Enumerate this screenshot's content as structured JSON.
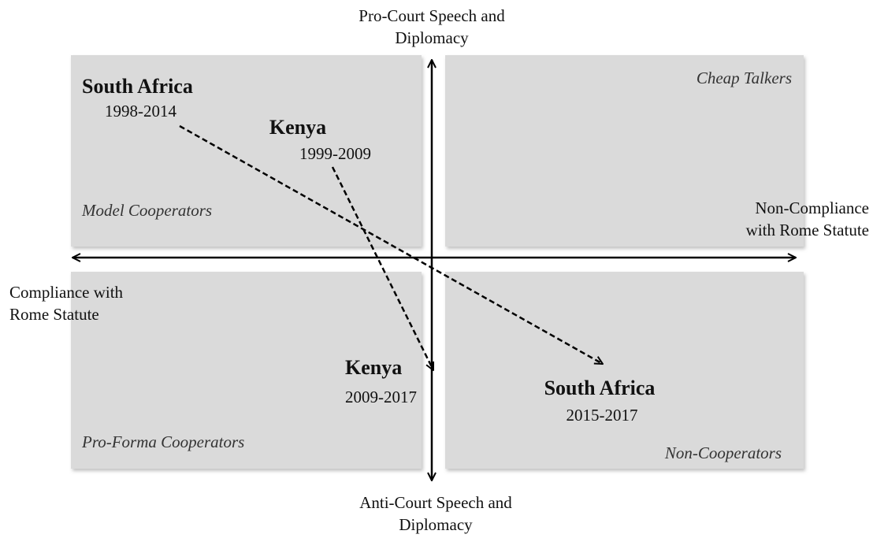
{
  "axes": {
    "top": [
      "Pro-Court Speech and",
      "Diplomacy"
    ],
    "bottom": [
      "Anti-Court Speech and",
      "Diplomacy"
    ],
    "left": [
      "Compliance with",
      "Rome Statute"
    ],
    "right": [
      "Non-Compliance",
      "with Rome Statute"
    ]
  },
  "quadrants": {
    "top_left": "Model Cooperators",
    "top_right": "Cheap Talkers",
    "bottom_left": "Pro-Forma Cooperators",
    "bottom_right": "Non-Cooperators"
  },
  "entities": [
    {
      "name": "South Africa",
      "period": "1998-2014"
    },
    {
      "name": "Kenya",
      "period": "1999-2009"
    },
    {
      "name": "Kenya",
      "period": "2009-2017"
    },
    {
      "name": "South Africa",
      "period": "2015-2017"
    }
  ]
}
